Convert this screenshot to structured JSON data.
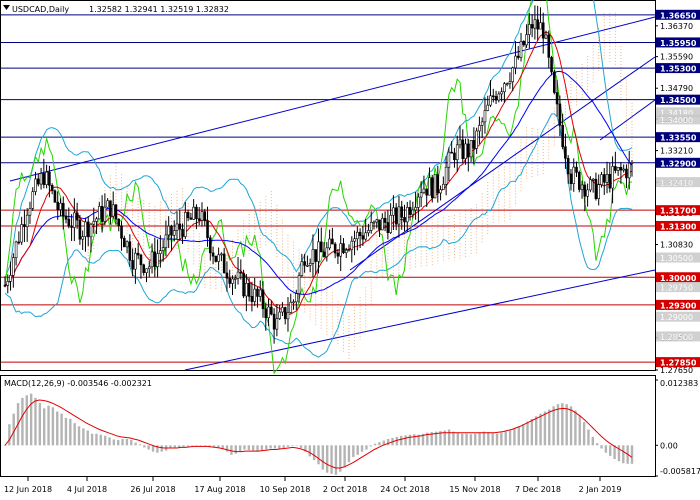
{
  "header": {
    "symbol": "USDCAD,Daily",
    "ohlc": "1.32582 1.32941 1.32519 1.32832"
  },
  "macd_header": "MACD(12,26,9) -0.003546 -0.002321",
  "colors": {
    "background": "#ffffff",
    "candle": "#000000",
    "horizontal_line": "#c00000",
    "horizontal_line_blue": "#000080",
    "label_red_bg": "#d40000",
    "label_blue_bg": "#00007a",
    "label_grey_bg": "#c8c8c8",
    "channel_line": "#0000cc",
    "bollinger": "#1fa5d6",
    "green_line": "#26d400",
    "red_ma": "#e00000",
    "blue_ma": "#0000ff",
    "cloud": "#f0a060",
    "macd_hist": "#b4b4b4",
    "macd_signal": "#e00000"
  },
  "chart_data": {
    "type": "candlestick",
    "symbol": "USDCAD",
    "timeframe": "Daily",
    "last_bar": {
      "open": 1.32582,
      "high": 1.32941,
      "low": 1.32519,
      "close": 1.32832
    },
    "ylim": [
      1.2765,
      1.37
    ],
    "price_axis_ticks": [
      "1.36370",
      "1.35590",
      "1.34790",
      "1.34010",
      "1.33210",
      "1.32410",
      "1.31630",
      "1.30830",
      "1.30050",
      "1.29250",
      "1.28470",
      "1.27650"
    ],
    "x_tick_labels": [
      "12 Jun 2018",
      "4 Jul 2018",
      "26 Jul 2018",
      "17 Aug 2018",
      "10 Sep 2018",
      "2 Oct 2018",
      "24 Oct 2018",
      "15 Nov 2018",
      "7 Dec 2018",
      "2 Jan 2019"
    ],
    "levels": [
      {
        "value": 1.3665,
        "label": "1.36650",
        "style": "blue",
        "badge": "blue"
      },
      {
        "value": 1.3595,
        "label": "1.35950",
        "style": "blue",
        "badge": "blue"
      },
      {
        "value": 1.353,
        "label": "1.35300",
        "style": "blue",
        "badge": "blue"
      },
      {
        "value": 1.345,
        "label": "1.34500",
        "style": "blue",
        "badge": "blue"
      },
      {
        "value": 1.3355,
        "label": "1.33550",
        "style": "blue",
        "badge": "blue"
      },
      {
        "value": 1.329,
        "label": "1.32900",
        "style": "blue",
        "badge": "blue"
      },
      {
        "value": 1.317,
        "label": "1.31700",
        "style": "red",
        "badge": "red"
      },
      {
        "value": 1.313,
        "label": "1.31300",
        "style": "red",
        "badge": "red"
      },
      {
        "value": 1.3,
        "label": "1.30000",
        "style": "red",
        "badge": "red"
      },
      {
        "value": 1.293,
        "label": "1.29300",
        "style": "red",
        "badge": "red"
      },
      {
        "value": 1.2785,
        "label": "1.27850",
        "style": "red",
        "badge": "red"
      }
    ],
    "indicator_labels": [
      "1.34180",
      "1.34000",
      "1.32410",
      "1.30500",
      "1.29750",
      "1.29000",
      "1.28500"
    ],
    "macd": {
      "params": "12,26,9",
      "main": -0.003546,
      "signal": -0.002321,
      "axis_ticks": [
        "0.012383",
        "0.00",
        "-0.005817"
      ],
      "ylim": [
        -0.005817,
        0.012383
      ],
      "histogram": [
        0.0,
        0.004,
        0.006,
        0.008,
        0.009,
        0.0095,
        0.0098,
        0.009,
        0.008,
        0.007,
        0.0075,
        0.0072,
        0.0064,
        0.006,
        0.0052,
        0.005,
        0.0042,
        0.0036,
        0.0032,
        0.0028,
        0.0022,
        0.0022,
        0.002,
        0.0018,
        0.0015,
        0.0011,
        0.001,
        0.0012,
        0.0012,
        0.001,
        0.0005,
        0.0002,
        -0.0004,
        -0.0008,
        -0.0012,
        -0.0014,
        -0.0012,
        -0.001,
        -0.0006,
        -0.0004,
        -0.0004,
        -0.0003,
        -0.0002,
        0.0,
        0.0,
        0.0,
        -0.0001,
        -0.0002,
        -0.0003,
        -0.0005,
        -0.0007,
        -0.0012,
        -0.0018,
        -0.0016,
        -0.0012,
        -0.0008,
        -0.0009,
        -0.001,
        -0.0012,
        -0.001,
        -0.0008,
        -0.0006,
        -0.0006,
        -0.0007,
        -0.0005,
        -0.0003,
        -0.0001,
        0.0,
        -0.0005,
        -0.0012,
        -0.0021,
        -0.0028,
        -0.0036,
        -0.0046,
        -0.0052,
        -0.0054,
        -0.0056,
        -0.005,
        -0.0042,
        -0.0032,
        -0.0022,
        -0.0018,
        -0.0012,
        -0.0008,
        -0.0002,
        0.0003,
        0.0006,
        0.0009,
        0.0012,
        0.0014,
        0.0016,
        0.0018,
        0.0019,
        0.002,
        0.0021,
        0.002,
        0.0022,
        0.0024,
        0.0025,
        0.0026,
        0.0027,
        0.0028,
        0.003,
        0.0026,
        0.0024,
        0.0022,
        0.0022,
        0.0021,
        0.0022,
        0.0024,
        0.0026,
        0.0025,
        0.0023,
        0.0022,
        0.0024,
        0.0026,
        0.0028,
        0.0032,
        0.0036,
        0.004,
        0.0045,
        0.005,
        0.0055,
        0.006,
        0.0064,
        0.0068,
        0.0074,
        0.0078,
        0.008,
        0.0078,
        0.0074,
        0.0066,
        0.0056,
        0.0044,
        0.003,
        0.0016,
        0.0004,
        -0.0006,
        -0.0014,
        -0.002,
        -0.0026,
        -0.003,
        -0.0034,
        -0.0035,
        -0.0035
      ],
      "signal_line": [
        0.0,
        0.001,
        0.0025,
        0.004,
        0.0055,
        0.0068,
        0.0078,
        0.0084,
        0.0086,
        0.0085,
        0.0083,
        0.008,
        0.0076,
        0.0072,
        0.0067,
        0.0062,
        0.0057,
        0.0052,
        0.0047,
        0.0042,
        0.0038,
        0.0034,
        0.003,
        0.0027,
        0.0024,
        0.0021,
        0.0018,
        0.0016,
        0.0015,
        0.0014,
        0.0012,
        0.001,
        0.0007,
        0.0004,
        0.0001,
        -0.0002,
        -0.0004,
        -0.0005,
        -0.0005,
        -0.0005,
        -0.0005,
        -0.0004,
        -0.0004,
        -0.0003,
        -0.0002,
        -0.0002,
        -0.0002,
        -0.0002,
        -0.0003,
        -0.0004,
        -0.0005,
        -0.0007,
        -0.0009,
        -0.0011,
        -0.0012,
        -0.0012,
        -0.0011,
        -0.0011,
        -0.0011,
        -0.0011,
        -0.001,
        -0.0009,
        -0.0008,
        -0.0008,
        -0.0007,
        -0.0006,
        -0.0005,
        -0.0004,
        -0.0005,
        -0.0007,
        -0.001,
        -0.0014,
        -0.0019,
        -0.0025,
        -0.0031,
        -0.0036,
        -0.004,
        -0.0043,
        -0.0043,
        -0.0041,
        -0.0037,
        -0.0033,
        -0.0028,
        -0.0023,
        -0.0018,
        -0.0013,
        -0.0008,
        -0.0004,
        0.0,
        0.0003,
        0.0006,
        0.0009,
        0.0011,
        0.0013,
        0.0015,
        0.0016,
        0.0017,
        0.0018,
        0.002,
        0.0021,
        0.0022,
        0.0023,
        0.0024,
        0.0024,
        0.0024,
        0.0024,
        0.0024,
        0.0024,
        0.0024,
        0.0024,
        0.0024,
        0.0024,
        0.0024,
        0.0024,
        0.0024,
        0.0025,
        0.0026,
        0.0028,
        0.003,
        0.0033,
        0.0036,
        0.004,
        0.0044,
        0.0048,
        0.0052,
        0.0056,
        0.006,
        0.0064,
        0.0067,
        0.0069,
        0.007,
        0.0069,
        0.0066,
        0.0061,
        0.0055,
        0.0048,
        0.004,
        0.0032,
        0.0024,
        0.0016,
        0.0009,
        0.0003,
        -0.0002,
        -0.0007,
        -0.0012,
        -0.0017,
        -0.0023
      ]
    }
  }
}
